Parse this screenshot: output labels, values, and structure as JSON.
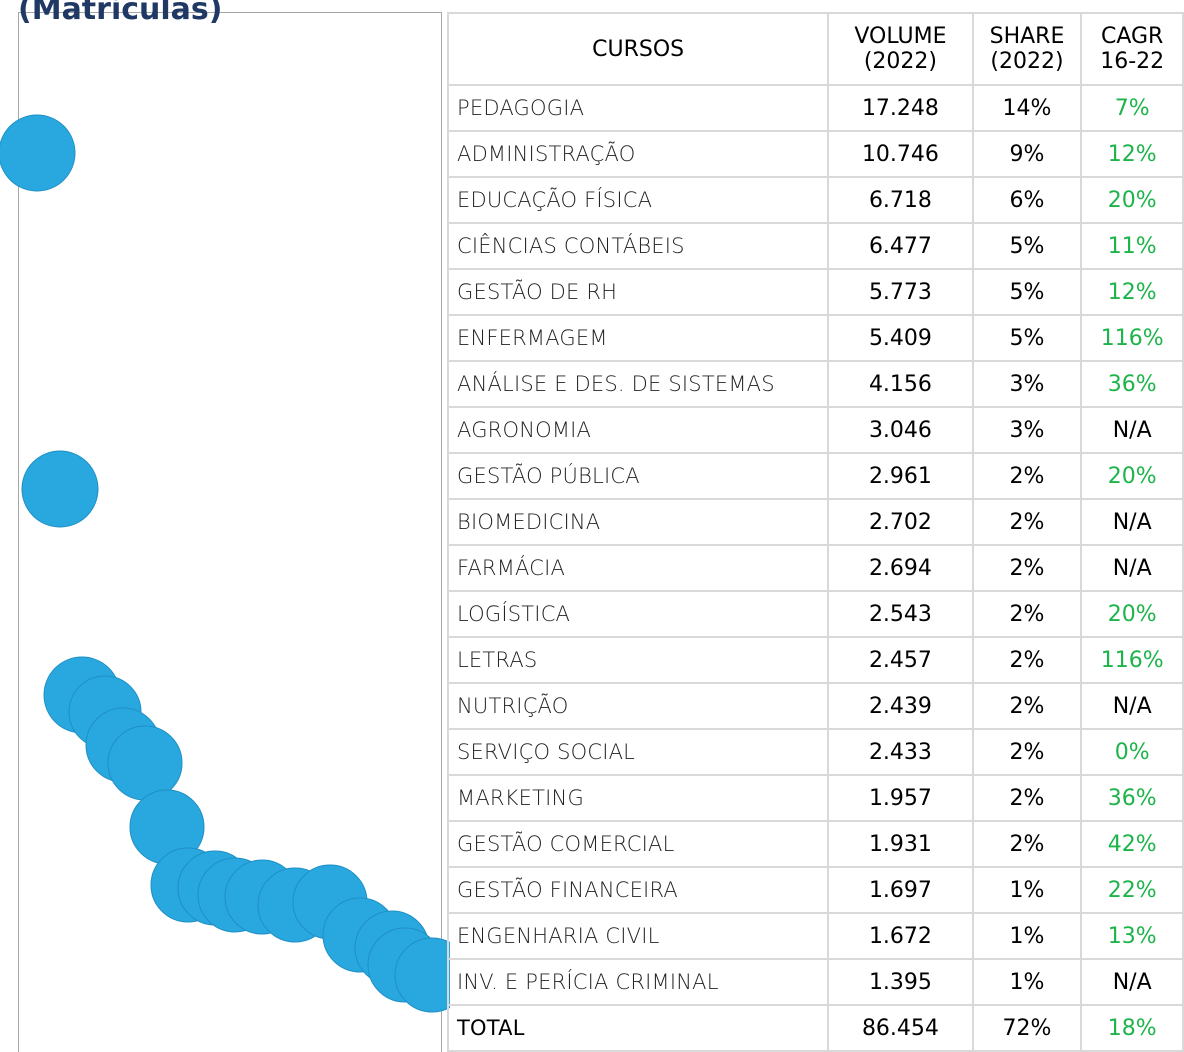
{
  "title": "(Matrículas)",
  "table": {
    "headers": [
      "CURSOS",
      "VOLUME (2022)",
      "SHARE (2022)",
      "CAGR 16-22"
    ],
    "rows": [
      [
        "PEDAGOGIA",
        "17.248",
        "14%",
        "7%"
      ],
      [
        "ADMINISTRAÇÃO",
        "10.746",
        "9%",
        "12%"
      ],
      [
        "EDUCAÇÃO FÍSICA",
        "6.718",
        "6%",
        "20%"
      ],
      [
        "CIÊNCIAS CONTÁBEIS",
        "6.477",
        "5%",
        "11%"
      ],
      [
        "GESTÃO DE RH",
        "5.773",
        "5%",
        "12%"
      ],
      [
        "ENFERMAGEM",
        "5.409",
        "5%",
        "116%"
      ],
      [
        "ANÁLISE E DES. DE SISTEMAS",
        "4.156",
        "3%",
        "36%"
      ],
      [
        "AGRONOMIA",
        "3.046",
        "3%",
        "N/A"
      ],
      [
        "GESTÃO PÚBLICA",
        "2.961",
        "2%",
        "20%"
      ],
      [
        "BIOMEDICINA",
        "2.702",
        "2%",
        "N/A"
      ],
      [
        "FARMÁCIA",
        "2.694",
        "2%",
        "N/A"
      ],
      [
        "LOGÍSTICA",
        "2.543",
        "2%",
        "20%"
      ],
      [
        "LETRAS",
        "2.457",
        "2%",
        "116%"
      ],
      [
        "NUTRIÇÃO",
        "2.439",
        "2%",
        "N/A"
      ],
      [
        "SERVIÇO SOCIAL",
        "2.433",
        "2%",
        "0%"
      ],
      [
        "MARKETING",
        "1.957",
        "2%",
        "36%"
      ],
      [
        "GESTÃO COMERCIAL",
        "1.931",
        "2%",
        "42%"
      ],
      [
        "GESTÃO FINANCEIRA",
        "1.697",
        "1%",
        "22%"
      ],
      [
        "ENGENHARIA CIVIL",
        "1.672",
        "1%",
        "13%"
      ],
      [
        "INV. E PERÍCIA CRIMINAL",
        "1.395",
        "1%",
        "N/A"
      ]
    ],
    "cagr_colors": [
      "#1db44a",
      "#1db44a",
      "#1db44a",
      "#1db44a",
      "#1db44a",
      "#1db44a",
      "#1db44a",
      "#000000",
      "#1db44a",
      "#000000",
      "#000000",
      "#1db44a",
      "#1db44a",
      "#000000",
      "#1db44a",
      "#1db44a",
      "#1db44a",
      "#1db44a",
      "#1db44a",
      "#000000"
    ],
    "total": [
      "TOTAL",
      "86.454",
      "72%",
      "18%"
    ],
    "total_cagr_color": "#1db44a"
  }
}
